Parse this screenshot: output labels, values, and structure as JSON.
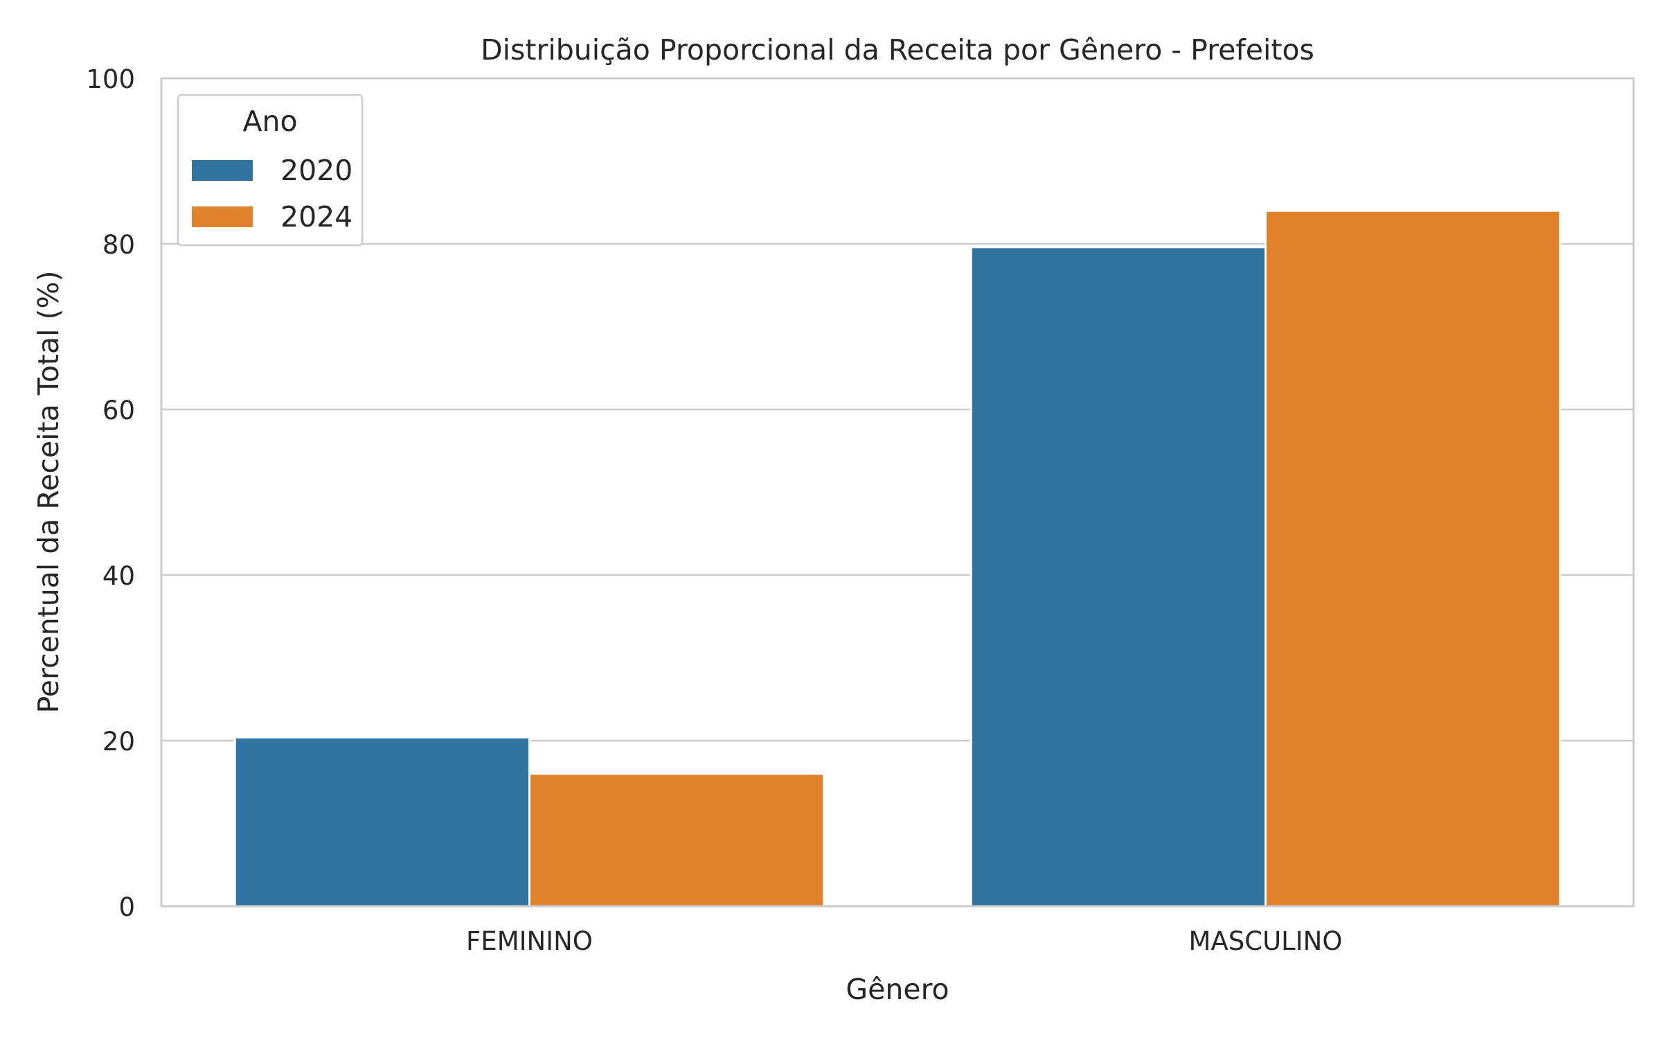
{
  "chart_data": {
    "type": "bar",
    "title": "Distribuição Proporcional da Receita por Gênero - Prefeitos",
    "xlabel": "Gênero",
    "ylabel": "Percentual da Receita Total (%)",
    "categories": [
      "FEMININO",
      "MASCULINO"
    ],
    "series": [
      {
        "name": "2020",
        "color": "#3274a1",
        "values": [
          20.4,
          79.6
        ]
      },
      {
        "name": "2024",
        "color": "#e1812c",
        "values": [
          16.0,
          84.0
        ]
      }
    ],
    "ylim": [
      0,
      100
    ],
    "yticks": [
      0,
      20,
      40,
      60,
      80,
      100
    ],
    "grid": true,
    "legend": {
      "title": "Ano",
      "position": "top-left"
    },
    "colors": {
      "grid": "#cccccc",
      "frame": "#cccccc",
      "text": "#262626"
    }
  }
}
